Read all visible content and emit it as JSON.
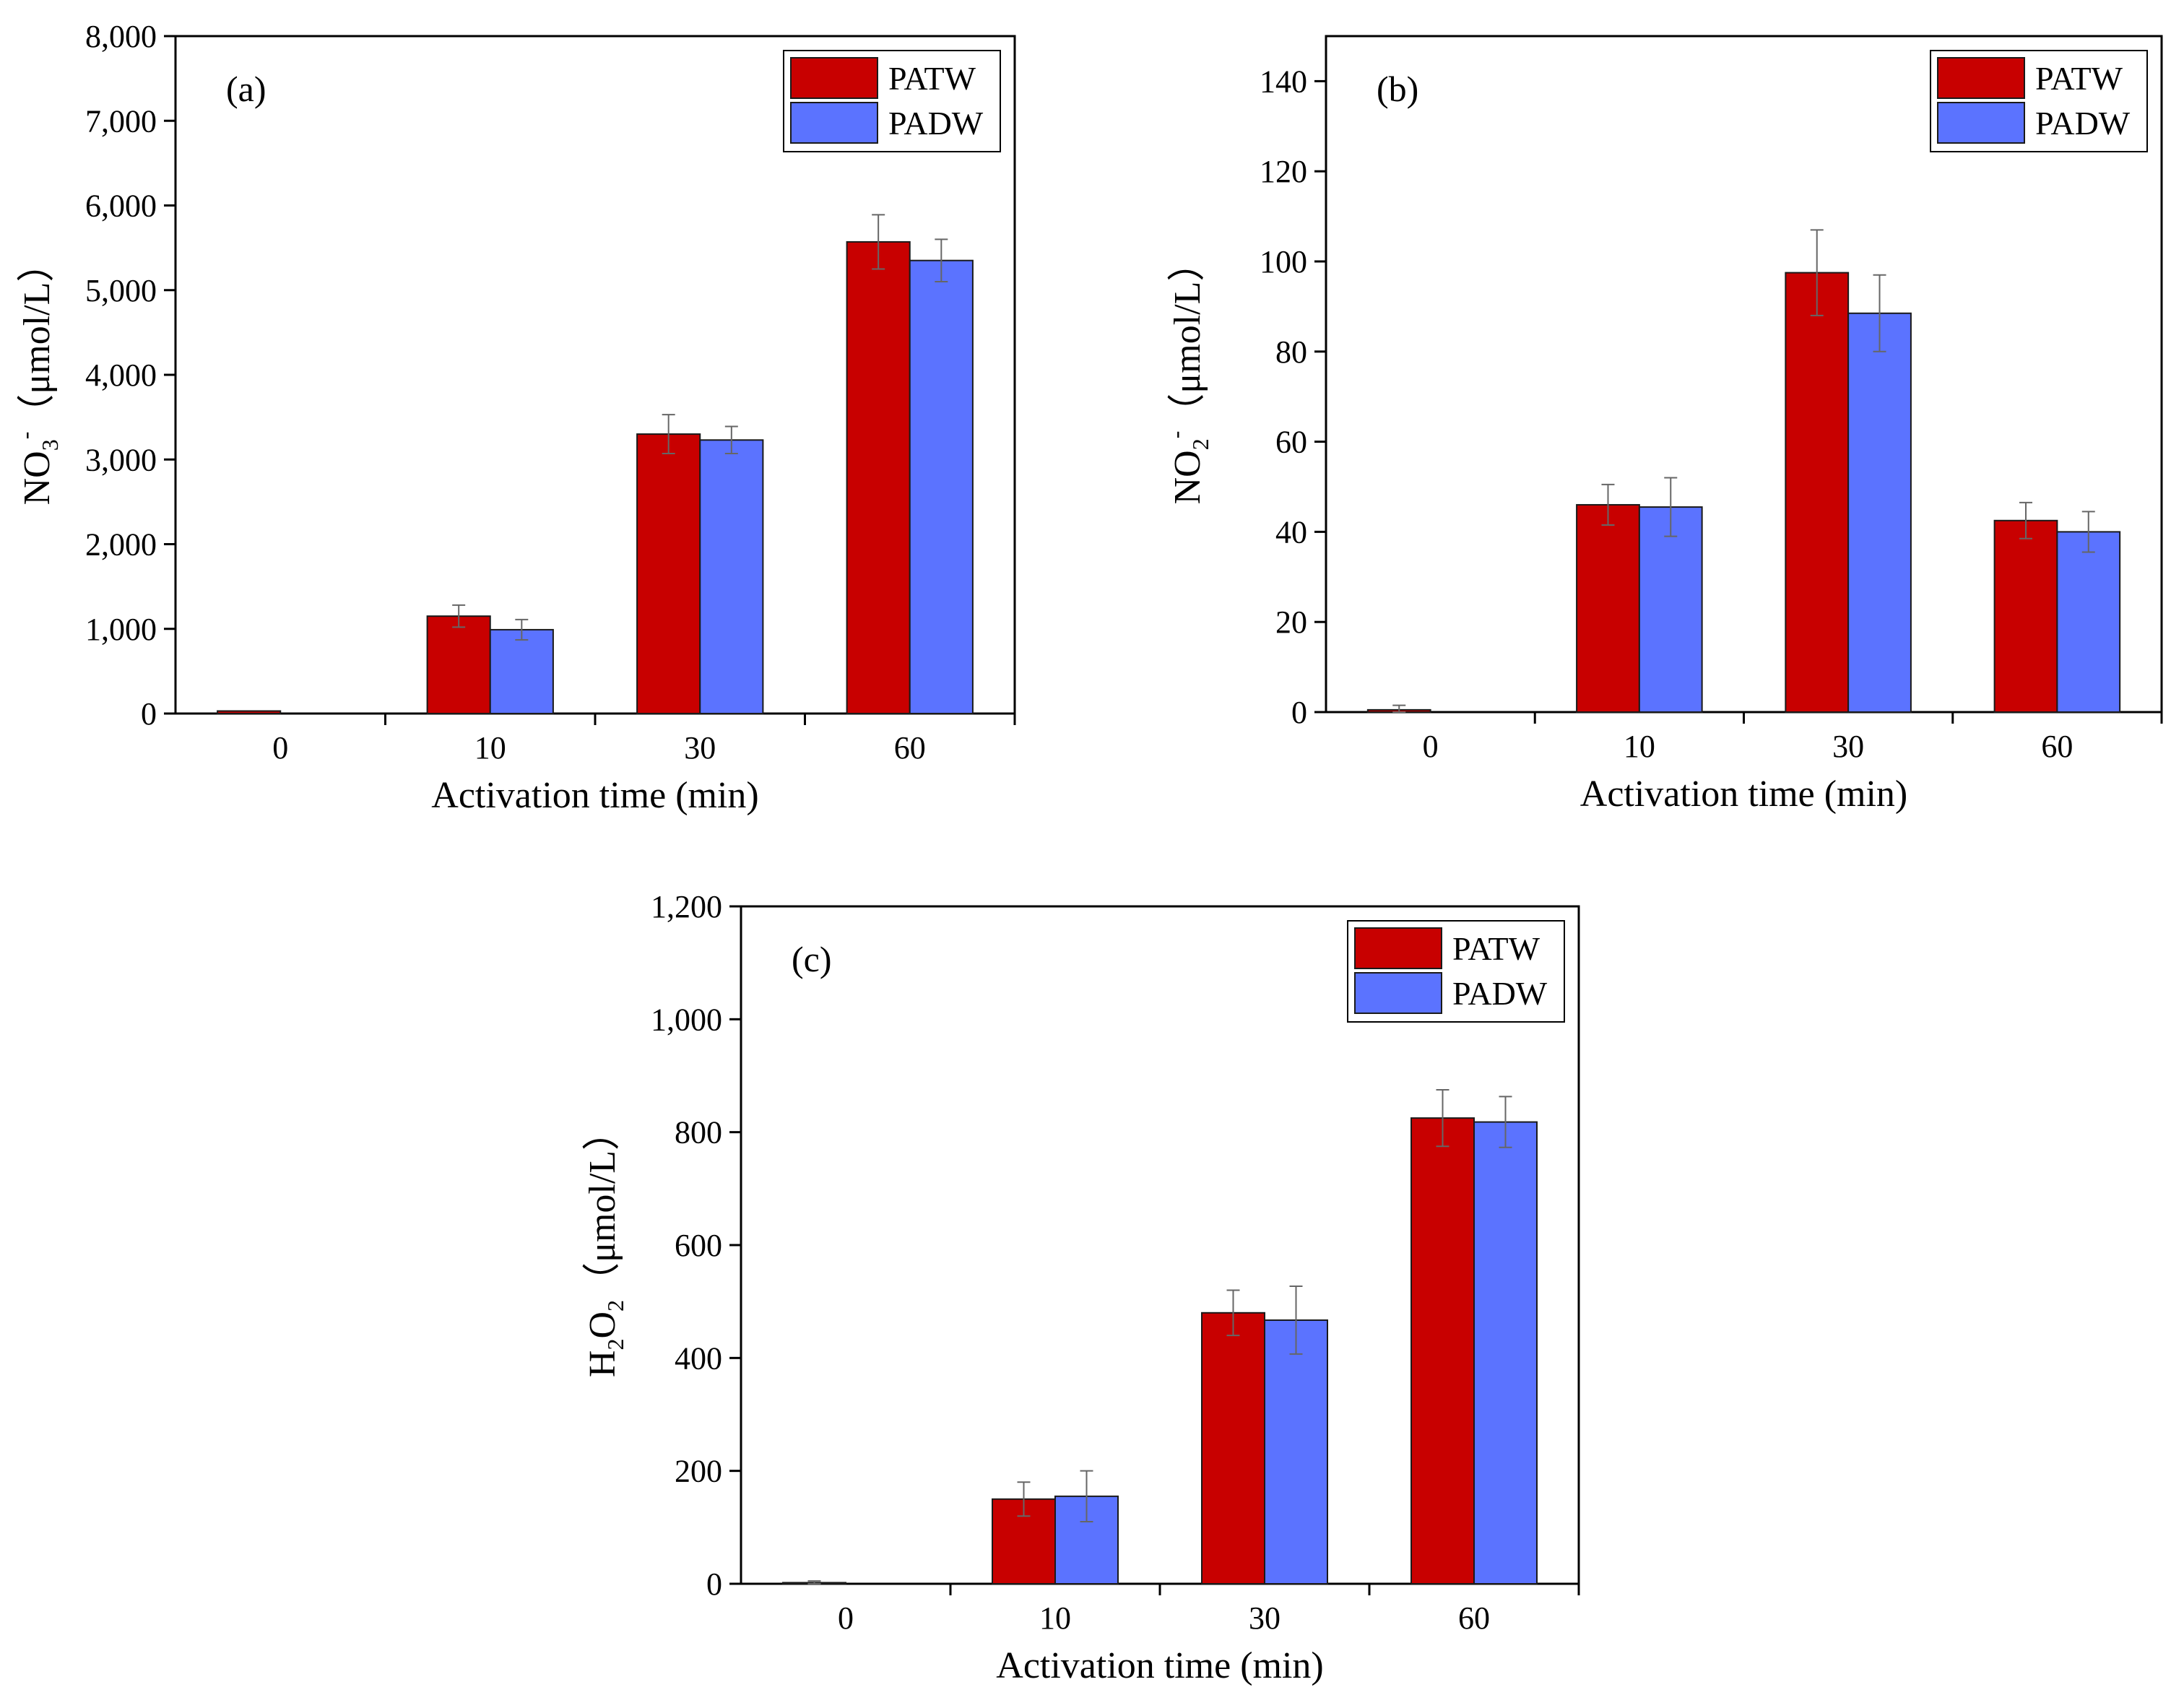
{
  "colors": {
    "PATW": "#c80000",
    "PADW": "#5b73ff",
    "frame": "#000000",
    "error_bar": "#666666"
  },
  "chart_data": [
    {
      "type": "bar",
      "panel_label": "(a)",
      "categories": [
        "0",
        "10",
        "30",
        "60"
      ],
      "series": [
        {
          "name": "PATW",
          "values": [
            30,
            1150,
            3300,
            5570
          ],
          "errors": [
            0,
            130,
            230,
            320
          ]
        },
        {
          "name": "PADW",
          "values": [
            0,
            990,
            3230,
            5350
          ],
          "errors": [
            0,
            120,
            160,
            250
          ]
        }
      ],
      "xlabel": "Activation time (min)",
      "ylabel": {
        "base": "NO",
        "sub": "3",
        "sup": "-",
        "rest": "（μmol/L）"
      },
      "ylim": [
        0,
        8000
      ],
      "yticks": [
        0,
        1000,
        2000,
        3000,
        4000,
        5000,
        6000,
        7000,
        8000
      ],
      "ytick_labels": [
        "0",
        "1,000",
        "2,000",
        "3,000",
        "4,000",
        "5,000",
        "6,000",
        "7,000",
        "8,000"
      ],
      "legend": "top-right"
    },
    {
      "type": "bar",
      "panel_label": "(b)",
      "categories": [
        "0",
        "10",
        "30",
        "60"
      ],
      "series": [
        {
          "name": "PATW",
          "values": [
            0.5,
            46,
            97.5,
            42.5
          ],
          "errors": [
            1,
            4.5,
            9.5,
            4
          ]
        },
        {
          "name": "PADW",
          "values": [
            0,
            45.5,
            88.5,
            40
          ],
          "errors": [
            0,
            6.5,
            8.5,
            4.5
          ]
        }
      ],
      "xlabel": "Activation time (min)",
      "ylabel": {
        "base": "NO",
        "sub": "2",
        "sup": "-",
        "rest": "（μmol/L）"
      },
      "ylim": [
        0,
        150
      ],
      "yticks": [
        0,
        20,
        40,
        60,
        80,
        100,
        120,
        140
      ],
      "ytick_labels": [
        "0",
        "20",
        "40",
        "60",
        "80",
        "100",
        "120",
        "140"
      ],
      "legend": "top-right"
    },
    {
      "type": "bar",
      "panel_label": "(c)",
      "categories": [
        "0",
        "10",
        "30",
        "60"
      ],
      "series": [
        {
          "name": "PATW",
          "values": [
            2,
            150,
            480,
            825
          ],
          "errors": [
            3,
            30,
            40,
            50
          ]
        },
        {
          "name": "PADW",
          "values": [
            0,
            155,
            467,
            818
          ],
          "errors": [
            0,
            45,
            60,
            45
          ]
        }
      ],
      "xlabel": "Activation time (min)",
      "ylabel": {
        "base": "H",
        "sub": "2",
        "mid": "O",
        "sub2": "2",
        "rest": "（μmol/L）"
      },
      "ylim": [
        0,
        1200
      ],
      "yticks": [
        0,
        200,
        400,
        600,
        800,
        1000,
        1200
      ],
      "ytick_labels": [
        "0",
        "200",
        "400",
        "600",
        "800",
        "1,000",
        "1,200"
      ],
      "legend": "top-right"
    }
  ]
}
